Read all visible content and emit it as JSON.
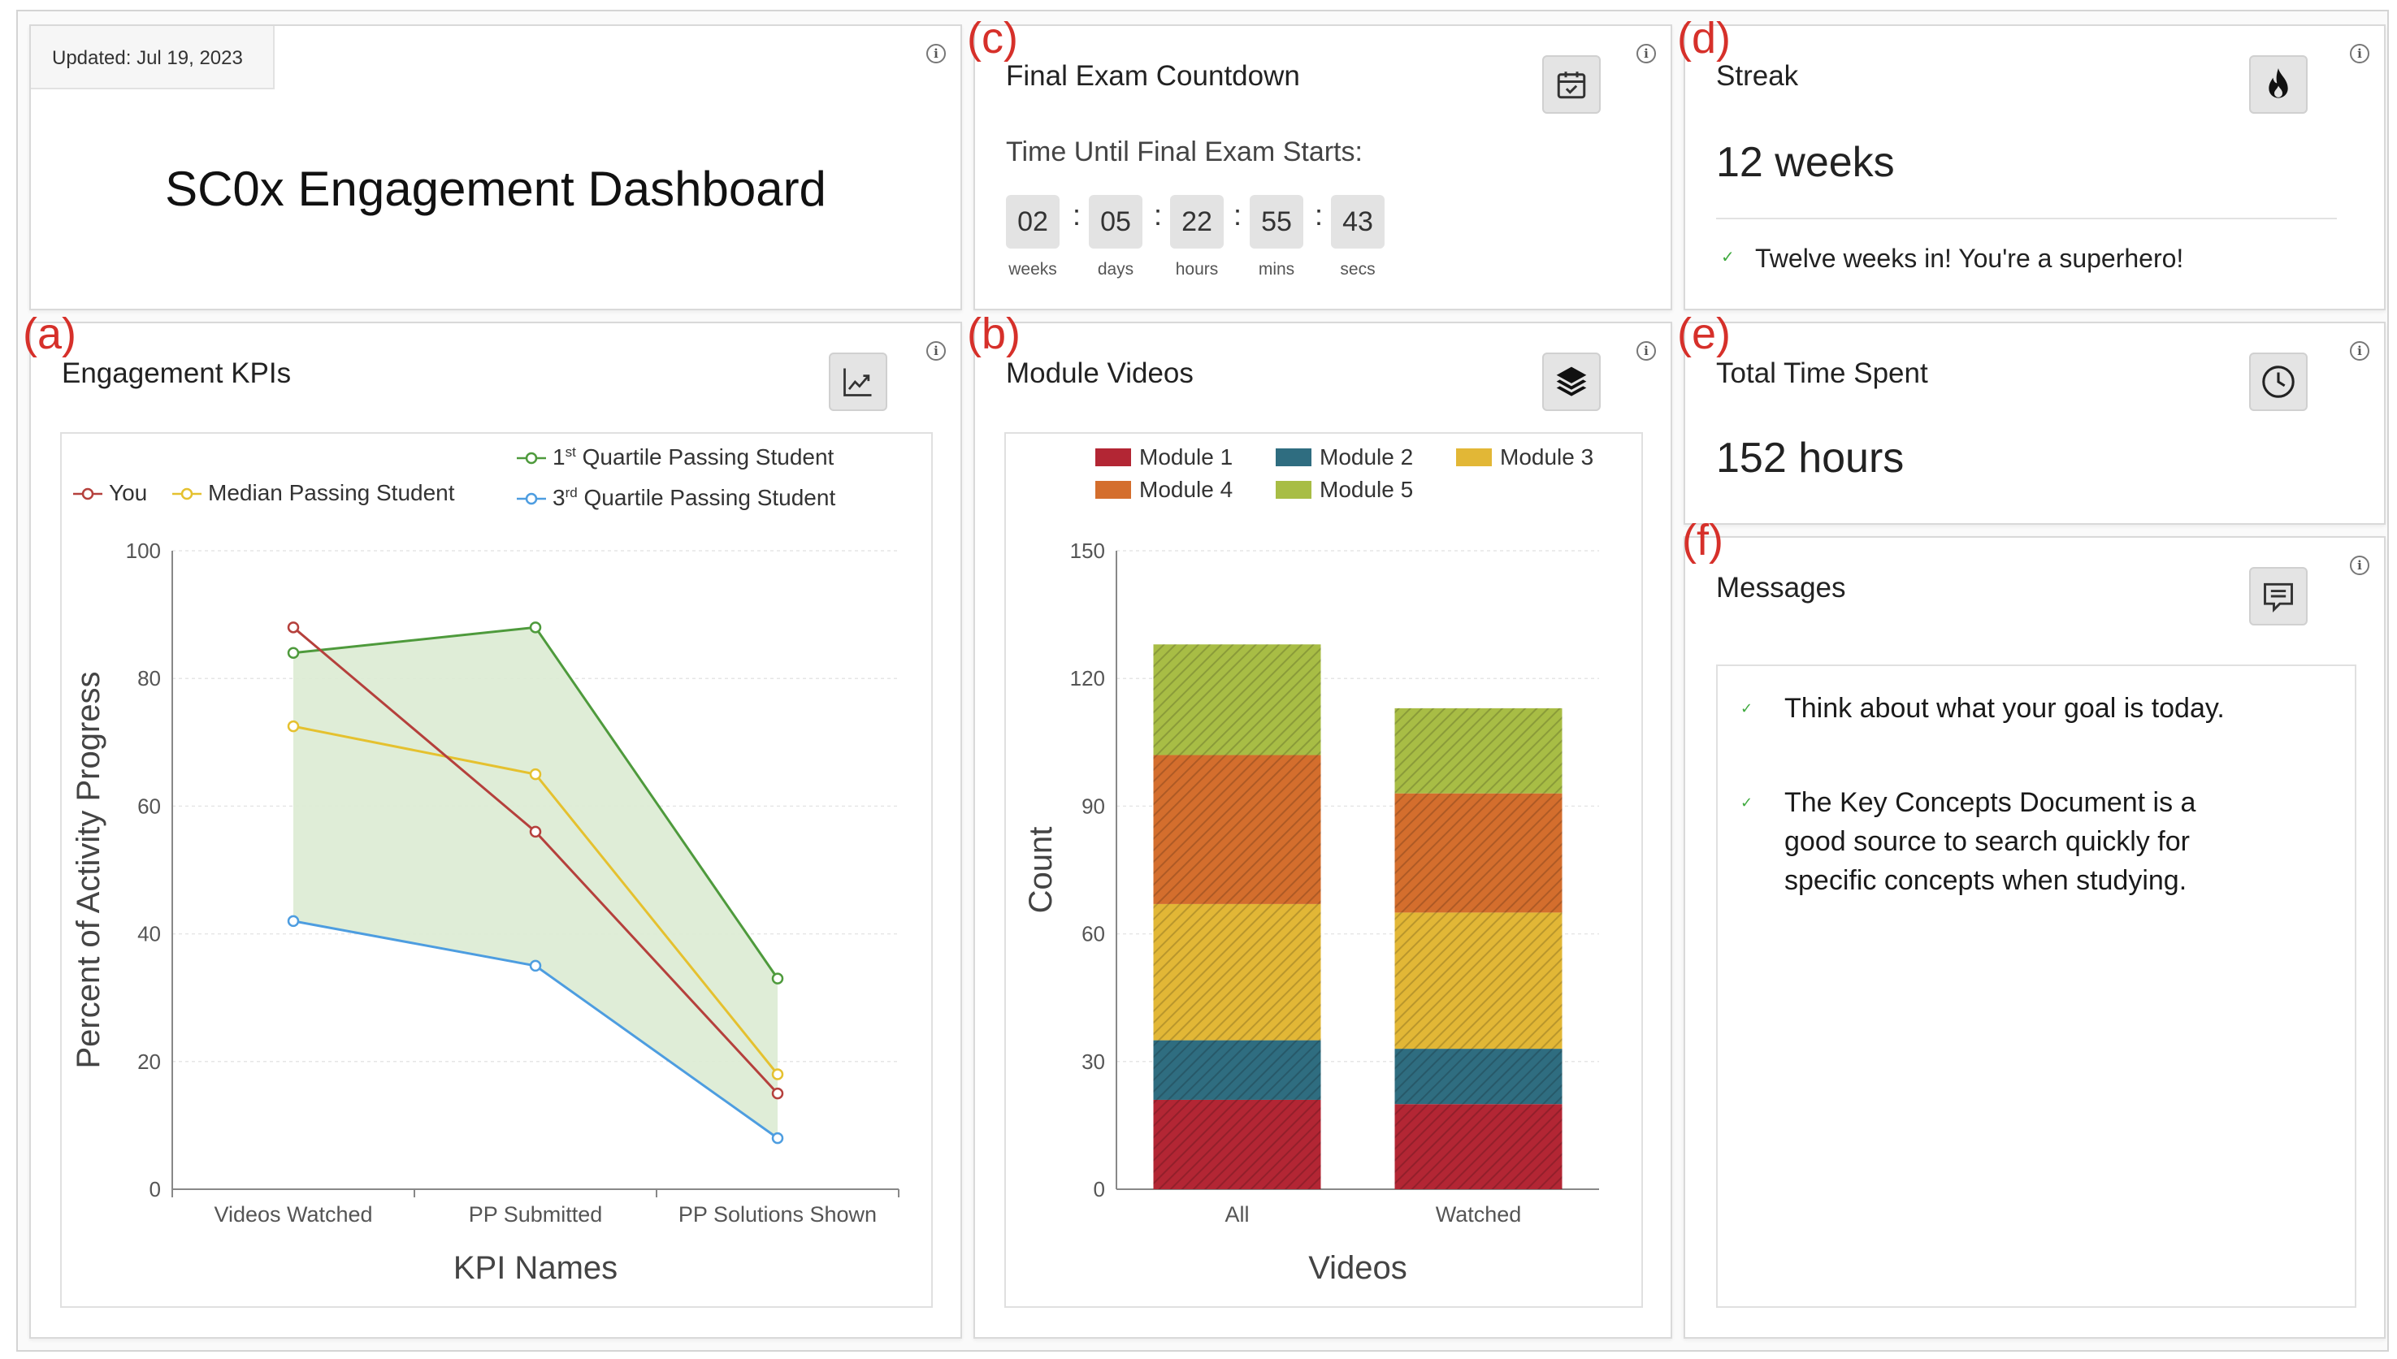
{
  "header_card": {
    "updated": "Updated: Jul 19, 2023",
    "title": "SC0x Engagement Dashboard"
  },
  "panel_letters": {
    "a": "(a)",
    "b": "(b)",
    "c": "(c)",
    "d": "(d)",
    "e": "(e)",
    "f": "(f)"
  },
  "countdown": {
    "title": "Final Exam Countdown",
    "subtitle": "Time Until Final Exam Starts:",
    "units": [
      {
        "value": "02",
        "label": "weeks"
      },
      {
        "value": "05",
        "label": "days"
      },
      {
        "value": "22",
        "label": "hours"
      },
      {
        "value": "55",
        "label": "mins"
      },
      {
        "value": "43",
        "label": "secs"
      }
    ],
    "separator": ":",
    "icon": "calendar-check-icon"
  },
  "streak": {
    "title": "Streak",
    "value": "12 weeks",
    "message": "Twelve weeks in! You're a superhero!",
    "icon": "flame-icon"
  },
  "total_time": {
    "title": "Total Time Spent",
    "value": "152 hours",
    "icon": "clock-icon"
  },
  "messages": {
    "title": "Messages",
    "icon": "message-icon",
    "items": [
      [
        "Think about what your goal is today."
      ],
      [
        "The Key Concepts Document is a",
        "good source to search quickly for",
        "specific concepts when studying."
      ]
    ]
  },
  "kpis": {
    "title": "Engagement KPIs",
    "icon": "trend-chart-icon"
  },
  "videos": {
    "title": "Module Videos",
    "icon": "layers-icon"
  },
  "info_glyph": "i",
  "chart_data": [
    {
      "type": "line",
      "categories": [
        "Videos Watched",
        "PP Submitted",
        "PP Solutions Shown"
      ],
      "xlabel": "KPI Names",
      "ylabel": "Percent of Activity Progress",
      "ylim": [
        0,
        100
      ],
      "yticks": [
        0,
        20,
        40,
        60,
        80,
        100
      ],
      "grid": true,
      "legend_position": "top",
      "series": [
        {
          "name": "You",
          "values": [
            88,
            56,
            15
          ],
          "color": "#b5403c"
        },
        {
          "name": "Median Passing Student",
          "values": [
            72.5,
            65,
            18
          ],
          "color": "#e5c12f"
        },
        {
          "name": "1st Quartile Passing Student",
          "label_base": "1",
          "label_sup": "st",
          "label_rest": " Quartile Passing Student",
          "values": [
            84,
            88,
            33
          ],
          "color": "#4e9a3c"
        },
        {
          "name": "3rd Quartile Passing Student",
          "label_base": "3",
          "label_sup": "rd",
          "label_rest": " Quartile Passing Student",
          "values": [
            42,
            35,
            8
          ],
          "color": "#4d9de0"
        }
      ],
      "shaded_band": {
        "between": [
          "1st Quartile Passing Student",
          "3rd Quartile Passing Student"
        ],
        "color": "#dcebd3"
      }
    },
    {
      "type": "bar",
      "stacked": true,
      "categories": [
        "All",
        "Watched"
      ],
      "xlabel": "Videos",
      "ylabel": "Count",
      "ylim": [
        0,
        150
      ],
      "yticks": [
        0,
        30,
        60,
        90,
        120,
        150
      ],
      "grid": true,
      "legend_position": "top",
      "series": [
        {
          "name": "Module 1",
          "values": [
            21,
            20
          ],
          "color": "#b32634"
        },
        {
          "name": "Module 2",
          "values": [
            14,
            13
          ],
          "color": "#2f6d80"
        },
        {
          "name": "Module 3",
          "values": [
            32,
            32
          ],
          "color": "#e2b736"
        },
        {
          "name": "Module 4",
          "values": [
            35,
            28
          ],
          "color": "#d46e2d"
        },
        {
          "name": "Module 5",
          "values": [
            26,
            20
          ],
          "color": "#a8bd45"
        }
      ]
    }
  ]
}
